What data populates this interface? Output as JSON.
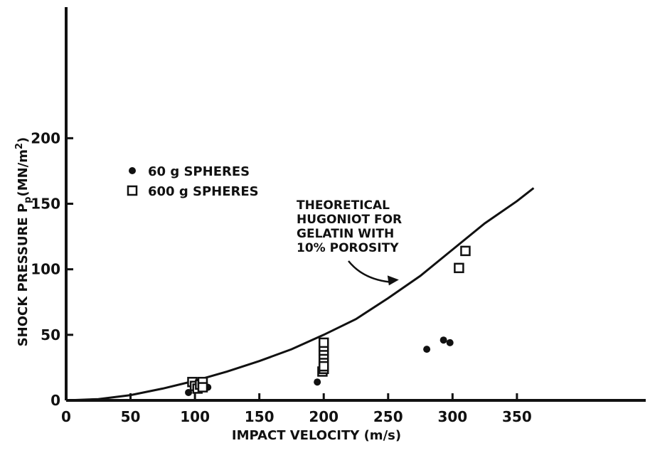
{
  "chart_data": {
    "type": "scatter",
    "xlabel": "IMPACT VELOCITY (m/s)",
    "ylabel": "SHOCK PRESSURE P",
    "ylabel_sub": "p",
    "ylabel_units": "(MN/m",
    "ylabel_sup": "2",
    "ylabel_close": ")",
    "xlim": [
      0,
      450
    ],
    "ylim": [
      0,
      300
    ],
    "xticks": [
      0,
      50,
      100,
      150,
      200,
      250,
      300,
      350
    ],
    "yticks": [
      0,
      50,
      100,
      150,
      200
    ],
    "grid": false,
    "legend_position": "upper-left",
    "series": [
      {
        "name": "60 g SPHERES",
        "marker": "filled-circle",
        "points": [
          [
            95,
            6
          ],
          [
            100,
            9
          ],
          [
            110,
            10
          ],
          [
            195,
            14
          ],
          [
            280,
            39
          ],
          [
            293,
            46
          ],
          [
            298,
            44
          ]
        ]
      },
      {
        "name": "600 g SPHERES",
        "marker": "open-square",
        "points": [
          [
            98,
            14
          ],
          [
            100,
            11
          ],
          [
            102,
            9
          ],
          [
            104,
            12
          ],
          [
            106,
            14
          ],
          [
            106,
            10
          ],
          [
            199,
            22
          ],
          [
            200,
            24
          ],
          [
            200,
            27
          ],
          [
            200,
            31
          ],
          [
            200,
            35
          ],
          [
            200,
            38
          ],
          [
            200,
            41
          ],
          [
            200,
            44
          ],
          [
            200,
            26
          ],
          [
            305,
            101
          ],
          [
            310,
            114
          ]
        ]
      }
    ],
    "curve": {
      "points": [
        [
          0,
          0
        ],
        [
          25,
          1
        ],
        [
          50,
          4
        ],
        [
          75,
          9
        ],
        [
          100,
          15
        ],
        [
          125,
          22
        ],
        [
          150,
          30
        ],
        [
          175,
          39
        ],
        [
          200,
          50
        ],
        [
          225,
          62
        ],
        [
          250,
          78
        ],
        [
          275,
          95
        ],
        [
          300,
          115
        ],
        [
          325,
          135
        ],
        [
          350,
          152
        ],
        [
          363,
          162
        ]
      ]
    },
    "annotation": {
      "lines": [
        "THEORETICAL",
        "HUGONIOT FOR",
        "GELATIN WITH",
        "10% POROSITY"
      ],
      "arrow_target": [
        255,
        92
      ]
    }
  }
}
